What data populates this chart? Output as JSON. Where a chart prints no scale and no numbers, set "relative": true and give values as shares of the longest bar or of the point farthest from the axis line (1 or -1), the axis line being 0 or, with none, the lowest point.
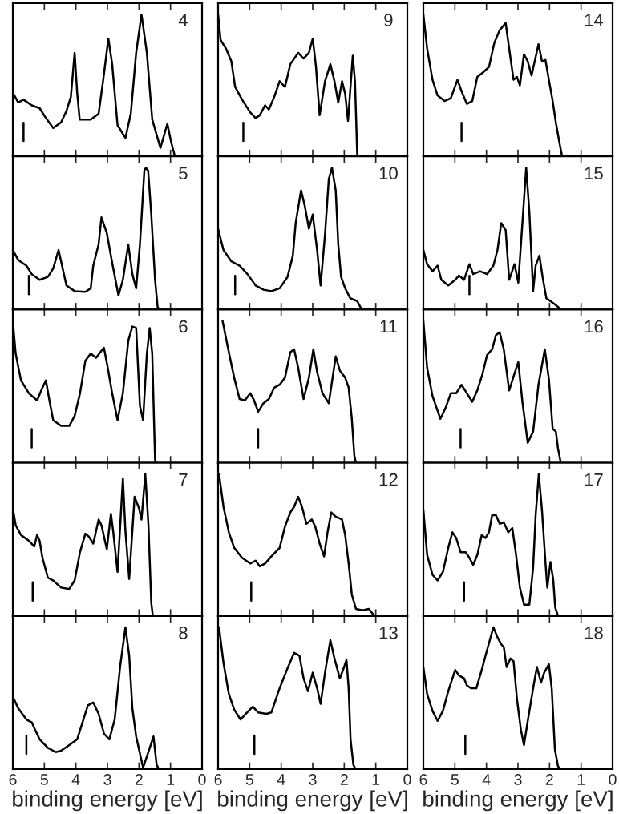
{
  "chart_data": [
    {
      "type": "line",
      "relative": true,
      "xlim": [
        6,
        0
      ],
      "xticks": [
        6,
        5,
        4,
        3,
        2,
        1,
        0
      ],
      "tick_labels": false,
      "annotations": [
        "4"
      ],
      "ref_lines": [
        {
          "axis": "x",
          "value": 5.66
        }
      ],
      "x": [
        6.0,
        5.83,
        5.66,
        5.4,
        5.15,
        4.98,
        4.72,
        4.47,
        4.3,
        4.16,
        4.04,
        3.96,
        3.88,
        3.53,
        3.28,
        3.14,
        2.97,
        2.85,
        2.68,
        2.43,
        2.26,
        2.09,
        1.92,
        1.75,
        1.58,
        1.32,
        1.1,
        0.98,
        0.86
      ],
      "series": [
        {
          "color": "#000000",
          "values": [
            0.45,
            0.38,
            0.4,
            0.36,
            0.34,
            0.28,
            0.2,
            0.24,
            0.32,
            0.42,
            0.73,
            0.45,
            0.26,
            0.26,
            0.3,
            0.53,
            0.83,
            0.65,
            0.22,
            0.13,
            0.3,
            0.73,
            1.0,
            0.73,
            0.26,
            0.06,
            0.23,
            0.1,
            0
          ]
        }
      ]
    },
    {
      "type": "line",
      "relative": true,
      "xlim": [
        6,
        0
      ],
      "xticks": [
        6,
        5,
        4,
        3,
        2,
        1,
        0
      ],
      "tick_labels": false,
      "annotations": [
        "5"
      ],
      "ref_lines": [
        {
          "axis": "x",
          "value": 5.49
        }
      ],
      "x": [
        6.0,
        5.83,
        5.57,
        5.4,
        5.15,
        4.89,
        4.72,
        4.55,
        4.42,
        4.3,
        4.04,
        3.7,
        3.53,
        3.45,
        3.28,
        3.19,
        3.02,
        2.85,
        2.65,
        2.51,
        2.34,
        2.21,
        2.09,
        1.97,
        1.83,
        1.78,
        1.71,
        1.61,
        1.49,
        1.41,
        1.36
      ],
      "series": [
        {
          "color": "#000000",
          "values": [
            0.42,
            0.35,
            0.31,
            0.25,
            0.21,
            0.23,
            0.29,
            0.42,
            0.29,
            0.17,
            0.13,
            0.125,
            0.15,
            0.31,
            0.46,
            0.65,
            0.54,
            0.33,
            0.1,
            0.21,
            0.46,
            0.25,
            0.15,
            0.46,
            0.98,
            1.0,
            0.98,
            0.67,
            0.21,
            0.02,
            0
          ]
        }
      ]
    },
    {
      "type": "line",
      "relative": true,
      "xlim": [
        6,
        0
      ],
      "xticks": [
        6,
        5,
        4,
        3,
        2,
        1,
        0
      ],
      "tick_labels": false,
      "annotations": [
        "6"
      ],
      "ref_lines": [
        {
          "axis": "x",
          "value": 5.4
        }
      ],
      "x": [
        6.0,
        5.91,
        5.74,
        5.49,
        5.23,
        5.06,
        4.95,
        4.84,
        4.72,
        4.47,
        4.21,
        4.04,
        3.87,
        3.7,
        3.53,
        3.36,
        3.19,
        3.11,
        2.99,
        2.85,
        2.68,
        2.51,
        2.34,
        2.21,
        2.09,
        1.97,
        1.87,
        1.75,
        1.66,
        1.58,
        1.49,
        1.46
      ],
      "series": [
        {
          "color": "#000000",
          "values": [
            1.0,
            0.77,
            0.58,
            0.49,
            0.44,
            0.53,
            0.58,
            0.44,
            0.3,
            0.26,
            0.26,
            0.33,
            0.49,
            0.72,
            0.77,
            0.74,
            0.79,
            0.81,
            0.67,
            0.49,
            0.3,
            0.49,
            0.86,
            0.96,
            0.95,
            0.4,
            0.3,
            0.77,
            0.95,
            0.77,
            0.02,
            0
          ]
        }
      ]
    },
    {
      "type": "line",
      "relative": true,
      "xlim": [
        6,
        0
      ],
      "xticks": [
        6,
        5,
        4,
        3,
        2,
        1,
        0
      ],
      "tick_labels": false,
      "annotations": [
        "7"
      ],
      "ref_lines": [
        {
          "axis": "x",
          "value": 5.37
        }
      ],
      "x": [
        6.0,
        5.91,
        5.74,
        5.49,
        5.32,
        5.23,
        5.15,
        5.06,
        4.89,
        4.72,
        4.47,
        4.21,
        4.04,
        3.87,
        3.7,
        3.59,
        3.45,
        3.28,
        3.19,
        3.02,
        2.89,
        2.82,
        2.68,
        2.51,
        2.43,
        2.31,
        2.14,
        2.0,
        1.92,
        1.8,
        1.7,
        1.61,
        1.56
      ],
      "series": [
        {
          "color": "#000000",
          "values": [
            0.76,
            0.64,
            0.57,
            0.53,
            0.49,
            0.57,
            0.53,
            0.41,
            0.27,
            0.25,
            0.2,
            0.19,
            0.25,
            0.45,
            0.58,
            0.56,
            0.51,
            0.68,
            0.64,
            0.47,
            0.72,
            0.6,
            0.31,
            0.97,
            0.6,
            0.26,
            0.84,
            0.76,
            0.68,
            1.0,
            0.64,
            0.09,
            0
          ]
        }
      ]
    },
    {
      "type": "line",
      "relative": true,
      "xlim": [
        6,
        0
      ],
      "xticks": [
        6,
        5,
        4,
        3,
        2,
        1,
        0
      ],
      "tick_labels": "x",
      "xlabel": "binding energy [eV]",
      "annotations": [
        "8"
      ],
      "ref_lines": [
        {
          "axis": "x",
          "value": 5.57
        }
      ],
      "x": [
        6.0,
        5.83,
        5.57,
        5.4,
        5.32,
        5.15,
        4.89,
        4.64,
        4.47,
        4.21,
        3.96,
        3.79,
        3.62,
        3.45,
        3.28,
        3.11,
        2.94,
        2.77,
        2.6,
        2.43,
        2.31,
        2.21,
        2.09,
        1.97,
        1.87,
        1.75,
        1.54,
        1.44,
        1.37
      ],
      "series": [
        {
          "color": "#000000",
          "values": [
            0.51,
            0.43,
            0.35,
            0.33,
            0.29,
            0.21,
            0.15,
            0.12,
            0.13,
            0.17,
            0.21,
            0.33,
            0.45,
            0.47,
            0.39,
            0.25,
            0.21,
            0.35,
            0.72,
            1.0,
            0.8,
            0.43,
            0.23,
            0.11,
            0.01,
            0.09,
            0.23,
            0.03,
            0
          ]
        }
      ]
    },
    {
      "type": "line",
      "relative": true,
      "xlim": [
        6,
        0
      ],
      "xticks": [
        6,
        5,
        4,
        3,
        2,
        1,
        0
      ],
      "tick_labels": false,
      "annotations": [
        "9"
      ],
      "ref_lines": [
        {
          "axis": "x",
          "value": 5.2
        }
      ],
      "x": [
        6.0,
        5.92,
        5.75,
        5.58,
        5.46,
        5.24,
        4.98,
        4.81,
        4.68,
        4.51,
        4.39,
        4.22,
        4.05,
        3.88,
        3.71,
        3.46,
        3.29,
        3.12,
        3.0,
        2.9,
        2.78,
        2.61,
        2.44,
        2.31,
        2.19,
        2.07,
        1.97,
        1.88,
        1.73,
        1.66,
        1.59,
        1.58
      ],
      "series": [
        {
          "color": "#000000",
          "values": [
            1.0,
            0.82,
            0.76,
            0.67,
            0.49,
            0.4,
            0.31,
            0.27,
            0.29,
            0.36,
            0.33,
            0.42,
            0.53,
            0.49,
            0.65,
            0.73,
            0.69,
            0.73,
            0.83,
            0.64,
            0.29,
            0.53,
            0.65,
            0.53,
            0.38,
            0.53,
            0.44,
            0.25,
            0.71,
            0.53,
            0.02,
            0
          ]
        }
      ]
    },
    {
      "type": "line",
      "relative": true,
      "xlim": [
        6,
        0
      ],
      "xticks": [
        6,
        5,
        4,
        3,
        2,
        1,
        0
      ],
      "tick_labels": false,
      "annotations": [
        "10"
      ],
      "ref_lines": [
        {
          "axis": "x",
          "value": 5.46
        }
      ],
      "x": [
        6.0,
        5.83,
        5.58,
        5.32,
        5.07,
        4.81,
        4.56,
        4.31,
        4.05,
        3.8,
        3.63,
        3.54,
        3.37,
        3.25,
        3.12,
        3.0,
        2.86,
        2.75,
        2.61,
        2.49,
        2.39,
        2.27,
        2.19,
        2.1,
        1.97,
        1.81,
        1.59,
        1.47,
        1.42
      ],
      "series": [
        {
          "color": "#000000",
          "values": [
            0.57,
            0.42,
            0.34,
            0.31,
            0.25,
            0.17,
            0.14,
            0.13,
            0.15,
            0.23,
            0.38,
            0.61,
            0.84,
            0.73,
            0.57,
            0.67,
            0.42,
            0.17,
            0.53,
            0.92,
            1.0,
            0.84,
            0.46,
            0.23,
            0.15,
            0.08,
            0.06,
            0.01,
            0
          ]
        }
      ]
    },
    {
      "type": "line",
      "relative": true,
      "xlim": [
        6,
        0
      ],
      "xticks": [
        6,
        5,
        4,
        3,
        2,
        1,
        0
      ],
      "tick_labels": false,
      "annotations": [
        "11"
      ],
      "ref_lines": [
        {
          "axis": "x",
          "value": 4.73
        }
      ],
      "x": [
        5.86,
        5.66,
        5.49,
        5.32,
        5.15,
        4.98,
        4.86,
        4.73,
        4.56,
        4.39,
        4.22,
        4.05,
        3.88,
        3.71,
        3.59,
        3.46,
        3.29,
        3.12,
        2.98,
        2.86,
        2.69,
        2.49,
        2.27,
        2.14,
        1.97,
        1.86,
        1.76,
        1.68,
        1.63
      ],
      "series": [
        {
          "color": "#000000",
          "values": [
            1.0,
            0.78,
            0.6,
            0.45,
            0.44,
            0.49,
            0.44,
            0.36,
            0.42,
            0.45,
            0.53,
            0.55,
            0.6,
            0.78,
            0.8,
            0.67,
            0.45,
            0.6,
            0.8,
            0.64,
            0.49,
            0.42,
            0.75,
            0.65,
            0.6,
            0.53,
            0.31,
            0.05,
            0
          ]
        }
      ]
    },
    {
      "type": "line",
      "relative": true,
      "xlim": [
        6,
        0
      ],
      "xticks": [
        6,
        5,
        4,
        3,
        2,
        1,
        0
      ],
      "tick_labels": false,
      "annotations": [
        "12"
      ],
      "ref_lines": [
        {
          "axis": "x",
          "value": 4.95
        }
      ],
      "x": [
        5.97,
        5.83,
        5.66,
        5.49,
        5.24,
        4.98,
        4.81,
        4.68,
        4.51,
        4.31,
        4.05,
        3.88,
        3.71,
        3.59,
        3.46,
        3.34,
        3.2,
        3.03,
        2.92,
        2.78,
        2.64,
        2.53,
        2.41,
        2.27,
        2.07,
        1.97,
        1.86,
        1.76,
        1.63,
        1.42,
        1.22,
        1.08,
        1.0
      ],
      "series": [
        {
          "color": "#000000",
          "values": [
            1.0,
            0.77,
            0.59,
            0.48,
            0.41,
            0.37,
            0.39,
            0.35,
            0.37,
            0.42,
            0.48,
            0.63,
            0.73,
            0.77,
            0.84,
            0.77,
            0.65,
            0.68,
            0.63,
            0.51,
            0.42,
            0.59,
            0.73,
            0.7,
            0.68,
            0.57,
            0.37,
            0.15,
            0.05,
            0.04,
            0.05,
            0.01,
            0
          ]
        }
      ]
    },
    {
      "type": "line",
      "relative": true,
      "xlim": [
        6,
        0
      ],
      "xticks": [
        6,
        5,
        4,
        3,
        2,
        1,
        0
      ],
      "tick_labels": "x",
      "xlabel": "binding energy [eV]",
      "annotations": [
        "13"
      ],
      "ref_lines": [
        {
          "axis": "x",
          "value": 4.85
        }
      ],
      "x": [
        5.97,
        5.83,
        5.66,
        5.49,
        5.29,
        5.12,
        4.9,
        4.73,
        4.47,
        4.31,
        4.05,
        3.8,
        3.59,
        3.42,
        3.29,
        3.15,
        3.0,
        2.86,
        2.75,
        2.61,
        2.44,
        2.31,
        2.14,
        2.02,
        1.93,
        1.86,
        1.8,
        1.71,
        1.64
      ],
      "series": [
        {
          "color": "#000000",
          "values": [
            1.0,
            0.75,
            0.53,
            0.42,
            0.35,
            0.39,
            0.44,
            0.4,
            0.39,
            0.4,
            0.57,
            0.71,
            0.82,
            0.8,
            0.64,
            0.55,
            0.68,
            0.57,
            0.46,
            0.68,
            0.91,
            0.78,
            0.64,
            0.71,
            0.77,
            0.57,
            0.21,
            0.03,
            0
          ]
        }
      ]
    },
    {
      "type": "line",
      "relative": true,
      "xlim": [
        6,
        0
      ],
      "xticks": [
        6,
        5,
        4,
        3,
        2,
        1,
        0
      ],
      "tick_labels": false,
      "annotations": [
        "14"
      ],
      "ref_lines": [
        {
          "axis": "x",
          "value": 4.79
        }
      ],
      "x": [
        6.0,
        5.88,
        5.71,
        5.55,
        5.33,
        5.13,
        4.92,
        4.79,
        4.62,
        4.45,
        4.29,
        4.12,
        3.92,
        3.75,
        3.58,
        3.39,
        3.28,
        3.14,
        3.03,
        2.94,
        2.81,
        2.69,
        2.57,
        2.47,
        2.35,
        2.24,
        2.13,
        2.02,
        1.9,
        1.8,
        1.68,
        1.6
      ],
      "series": [
        {
          "color": "#000000",
          "values": [
            1.0,
            0.76,
            0.54,
            0.43,
            0.39,
            0.41,
            0.54,
            0.46,
            0.37,
            0.39,
            0.56,
            0.59,
            0.63,
            0.8,
            0.89,
            0.94,
            0.76,
            0.54,
            0.56,
            0.5,
            0.72,
            0.67,
            0.57,
            0.67,
            0.79,
            0.67,
            0.68,
            0.54,
            0.39,
            0.24,
            0.09,
            0
          ]
        }
      ]
    },
    {
      "type": "line",
      "relative": true,
      "xlim": [
        6,
        0
      ],
      "xticks": [
        6,
        5,
        4,
        3,
        2,
        1,
        0
      ],
      "tick_labels": false,
      "annotations": [
        "15"
      ],
      "ref_lines": [
        {
          "axis": "x",
          "value": 4.54
        }
      ],
      "x": [
        6.0,
        5.88,
        5.71,
        5.55,
        5.43,
        5.21,
        4.99,
        4.87,
        4.71,
        4.54,
        4.42,
        4.2,
        3.98,
        3.78,
        3.65,
        3.53,
        3.39,
        3.28,
        3.11,
        2.99,
        2.86,
        2.74,
        2.64,
        2.52,
        2.44,
        2.32,
        2.22,
        2.1,
        1.85,
        1.68,
        1.63
      ],
      "series": [
        {
          "color": "#000000",
          "values": [
            0.42,
            0.32,
            0.27,
            0.31,
            0.21,
            0.17,
            0.21,
            0.24,
            0.21,
            0.32,
            0.25,
            0.27,
            0.25,
            0.31,
            0.42,
            0.61,
            0.56,
            0.21,
            0.32,
            0.19,
            0.61,
            1.0,
            0.69,
            0.13,
            0.31,
            0.38,
            0.23,
            0.08,
            0.04,
            0.01,
            0
          ]
        }
      ]
    },
    {
      "type": "line",
      "relative": true,
      "xlim": [
        6,
        0
      ],
      "xticks": [
        6,
        5,
        4,
        3,
        2,
        1,
        0
      ],
      "tick_labels": false,
      "annotations": [
        "16"
      ],
      "ref_lines": [
        {
          "axis": "x",
          "value": 4.82
        }
      ],
      "x": [
        6.0,
        5.88,
        5.71,
        5.46,
        5.29,
        5.13,
        4.96,
        4.79,
        4.62,
        4.45,
        4.29,
        4.12,
        3.98,
        3.82,
        3.7,
        3.58,
        3.45,
        3.28,
        3.11,
        2.99,
        2.86,
        2.69,
        2.52,
        2.35,
        2.15,
        2.02,
        1.9,
        1.8,
        1.73,
        1.66,
        1.63
      ],
      "series": [
        {
          "color": "#000000",
          "values": [
            1.0,
            0.67,
            0.47,
            0.31,
            0.39,
            0.49,
            0.49,
            0.55,
            0.49,
            0.43,
            0.51,
            0.63,
            0.76,
            0.8,
            0.9,
            0.92,
            0.8,
            0.51,
            0.63,
            0.71,
            0.43,
            0.14,
            0.22,
            0.55,
            0.8,
            0.59,
            0.24,
            0.22,
            0.1,
            0.02,
            0
          ]
        }
      ]
    },
    {
      "type": "line",
      "relative": true,
      "xlim": [
        6,
        0
      ],
      "xticks": [
        6,
        5,
        4,
        3,
        2,
        1,
        0
      ],
      "tick_labels": false,
      "annotations": [
        "17"
      ],
      "ref_lines": [
        {
          "axis": "x",
          "value": 4.71
        }
      ],
      "x": [
        6.0,
        5.88,
        5.71,
        5.55,
        5.38,
        5.21,
        5.08,
        4.96,
        4.82,
        4.66,
        4.54,
        4.42,
        4.29,
        4.15,
        4.03,
        3.92,
        3.82,
        3.7,
        3.58,
        3.45,
        3.31,
        3.18,
        3.06,
        2.94,
        2.81,
        2.64,
        2.52,
        2.44,
        2.34,
        2.24,
        2.13,
        2.07,
        1.97,
        1.88,
        1.82,
        1.73
      ],
      "series": [
        {
          "color": "#000000",
          "values": [
            0.75,
            0.43,
            0.29,
            0.25,
            0.31,
            0.48,
            0.59,
            0.55,
            0.45,
            0.45,
            0.41,
            0.36,
            0.43,
            0.57,
            0.55,
            0.59,
            0.71,
            0.71,
            0.65,
            0.66,
            0.59,
            0.62,
            0.43,
            0.2,
            0.08,
            0.08,
            0.34,
            0.71,
            1.0,
            0.75,
            0.38,
            0.2,
            0.38,
            0.25,
            0.06,
            0
          ]
        }
      ]
    },
    {
      "type": "line",
      "relative": true,
      "xlim": [
        6,
        0
      ],
      "xticks": [
        6,
        5,
        4,
        3,
        2,
        1,
        0
      ],
      "tick_labels": "x",
      "xlabel": "binding energy [eV]",
      "annotations": [
        "18"
      ],
      "ref_lines": [
        {
          "axis": "x",
          "value": 4.67
        }
      ],
      "x": [
        6.0,
        5.88,
        5.71,
        5.55,
        5.38,
        5.21,
        4.99,
        4.87,
        4.71,
        4.62,
        4.49,
        4.32,
        4.15,
        3.98,
        3.78,
        3.65,
        3.53,
        3.45,
        3.36,
        3.24,
        3.14,
        3.03,
        2.91,
        2.81,
        2.69,
        2.52,
        2.4,
        2.27,
        2.17,
        2.02,
        1.93,
        1.83,
        1.73,
        1.66
      ],
      "series": [
        {
          "color": "#000000",
          "values": [
            0.72,
            0.53,
            0.41,
            0.34,
            0.41,
            0.55,
            0.7,
            0.66,
            0.64,
            0.59,
            0.57,
            0.57,
            0.7,
            0.84,
            1.0,
            0.93,
            0.88,
            0.86,
            0.72,
            0.78,
            0.76,
            0.49,
            0.28,
            0.17,
            0.34,
            0.57,
            0.72,
            0.61,
            0.68,
            0.74,
            0.57,
            0.14,
            0.02,
            0
          ]
        }
      ]
    }
  ]
}
